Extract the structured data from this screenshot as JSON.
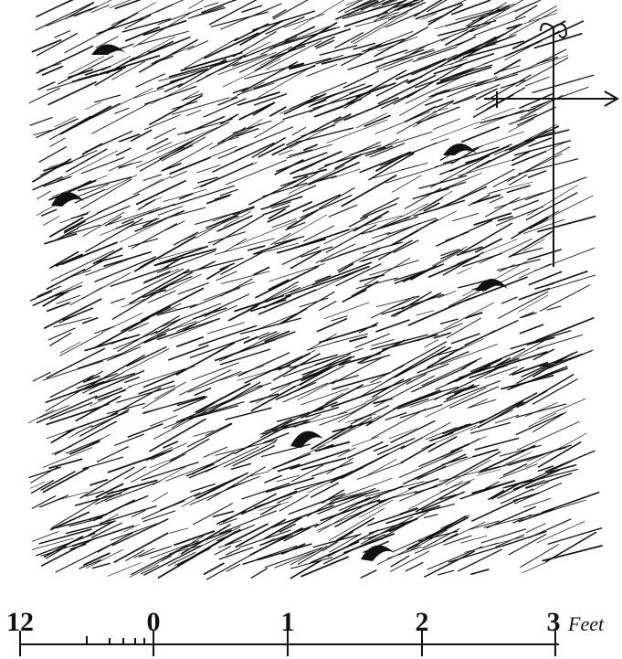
{
  "scale": {
    "labels": [
      "12",
      "0",
      "1",
      "2",
      "3"
    ],
    "unit": "Feet"
  }
}
